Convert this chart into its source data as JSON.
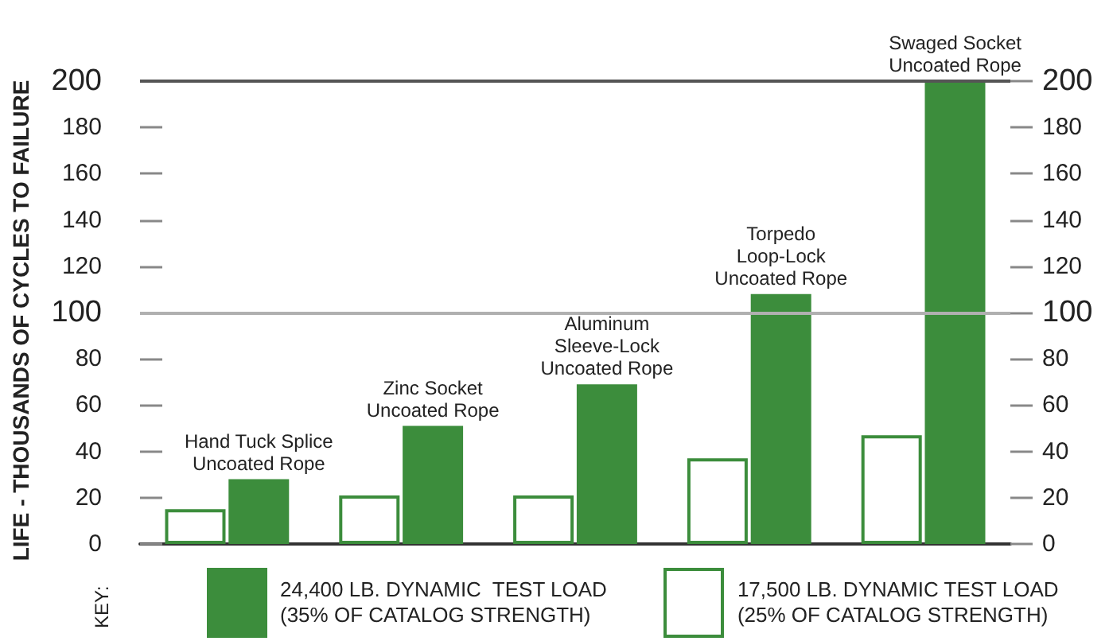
{
  "chart_data": {
    "type": "bar",
    "ylabel": "LIFE - THOUSANDS OF CYCLES TO FAILURE",
    "legend_title": "KEY:",
    "categories": [
      "Hand Tuck Splice\nUncoated Rope",
      "Zinc Socket\nUncoated Rope",
      "Aluminum\nSleeve-Lock\nUncoated Rope",
      "Torpedo\nLoop-Lock\nUncoated Rope",
      "Swaged Socket\nUncoated Rope"
    ],
    "series": [
      {
        "name": "17,500 LB. DYNAMIC TEST LOAD\n(25% OF CATALOG STRENGTH)",
        "color": "#ffffff",
        "values": [
          15,
          21,
          21,
          37,
          47
        ]
      },
      {
        "name": "24,400 LB. DYNAMIC  TEST LOAD\n(35% OF CATALOG STRENGTH)",
        "color": "#3c8d3c",
        "values": [
          28,
          51,
          69,
          108,
          200
        ]
      }
    ],
    "ylim": [
      0,
      200
    ],
    "yticks": [
      0,
      20,
      40,
      60,
      80,
      100,
      120,
      140,
      160,
      180,
      200
    ],
    "y2lim": [
      0,
      200
    ],
    "y2ticks": [
      0,
      20,
      40,
      60,
      80,
      100,
      120,
      140,
      160,
      180,
      200
    ],
    "ref_lines": [
      {
        "axis": "y",
        "value": 100,
        "color": "#b0b0b0"
      },
      {
        "axis": "y",
        "value": 200,
        "color": "#555555"
      }
    ],
    "grid": false,
    "legend": "bottom",
    "tick_labels": "y"
  }
}
